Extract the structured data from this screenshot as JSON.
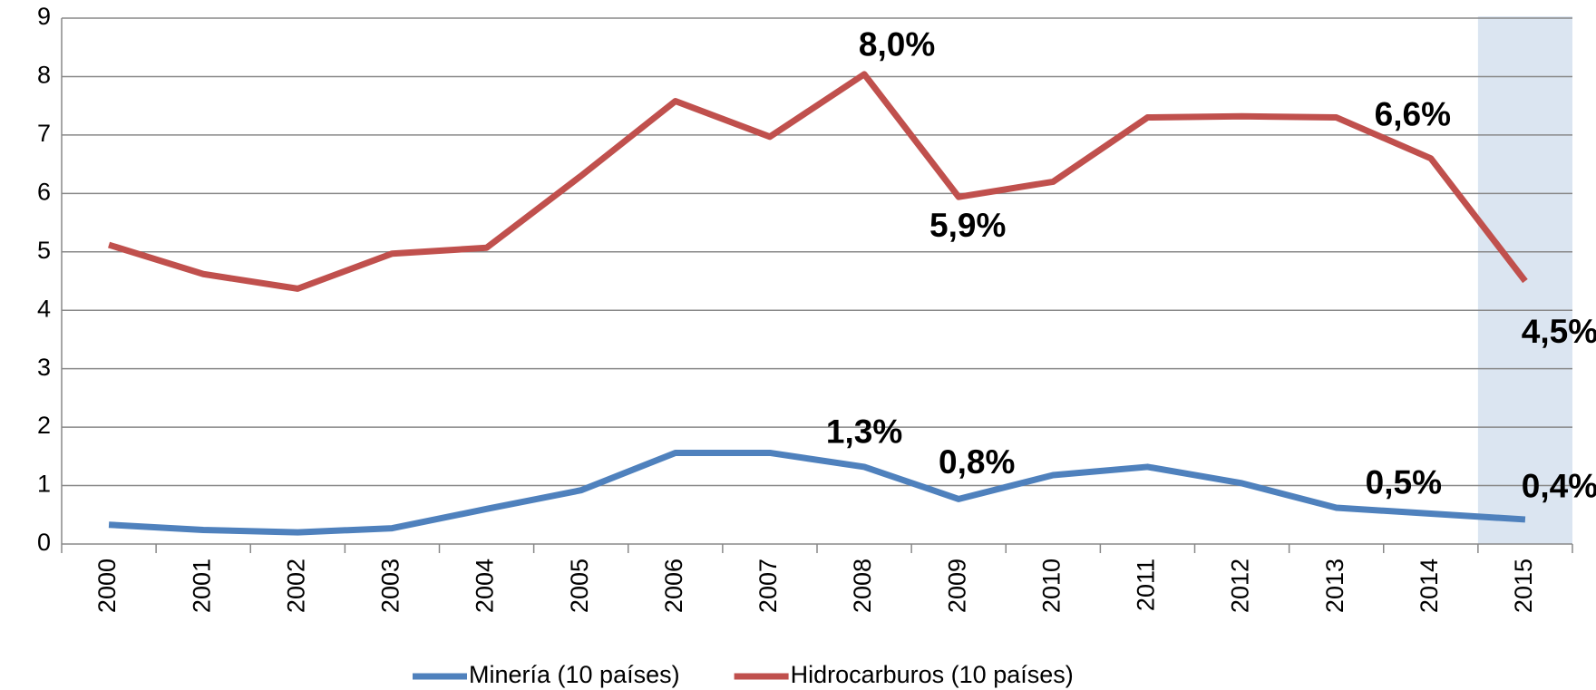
{
  "chart_data": {
    "type": "line",
    "categories": [
      "2000",
      "2001",
      "2002",
      "2003",
      "2004",
      "2005",
      "2006",
      "2007",
      "2008",
      "2009",
      "2010",
      "2011",
      "2012",
      "2013",
      "2014",
      "2015"
    ],
    "series": [
      {
        "name": "Minería (10 países)",
        "color": "#4f81bd",
        "values": [
          0.33,
          0.24,
          0.2,
          0.27,
          0.6,
          0.92,
          1.56,
          1.56,
          1.32,
          0.77,
          1.18,
          1.32,
          1.04,
          0.62,
          0.52,
          0.42
        ],
        "value_labels": [
          null,
          null,
          null,
          null,
          null,
          null,
          null,
          null,
          "1,3%",
          "0,8%",
          null,
          null,
          null,
          null,
          "0,5%",
          "0,4%"
        ]
      },
      {
        "name": "Hidrocarburos (10 países)",
        "color": "#c0504d",
        "values": [
          5.12,
          4.62,
          4.37,
          4.97,
          5.07,
          6.3,
          7.58,
          6.97,
          8.04,
          5.94,
          6.2,
          7.3,
          7.32,
          7.3,
          6.6,
          4.5
        ],
        "value_labels": [
          null,
          null,
          null,
          null,
          null,
          null,
          null,
          null,
          "8,0%",
          "5,9%",
          null,
          null,
          null,
          null,
          "6,6%",
          "4,5%"
        ]
      }
    ],
    "ylim": [
      0,
      9
    ],
    "yticks": [
      0,
      1,
      2,
      3,
      4,
      5,
      6,
      7,
      8,
      9
    ],
    "grid": true,
    "legend": "bottom",
    "highlight_index": 15,
    "highlight_color": "#dbe5f1"
  }
}
